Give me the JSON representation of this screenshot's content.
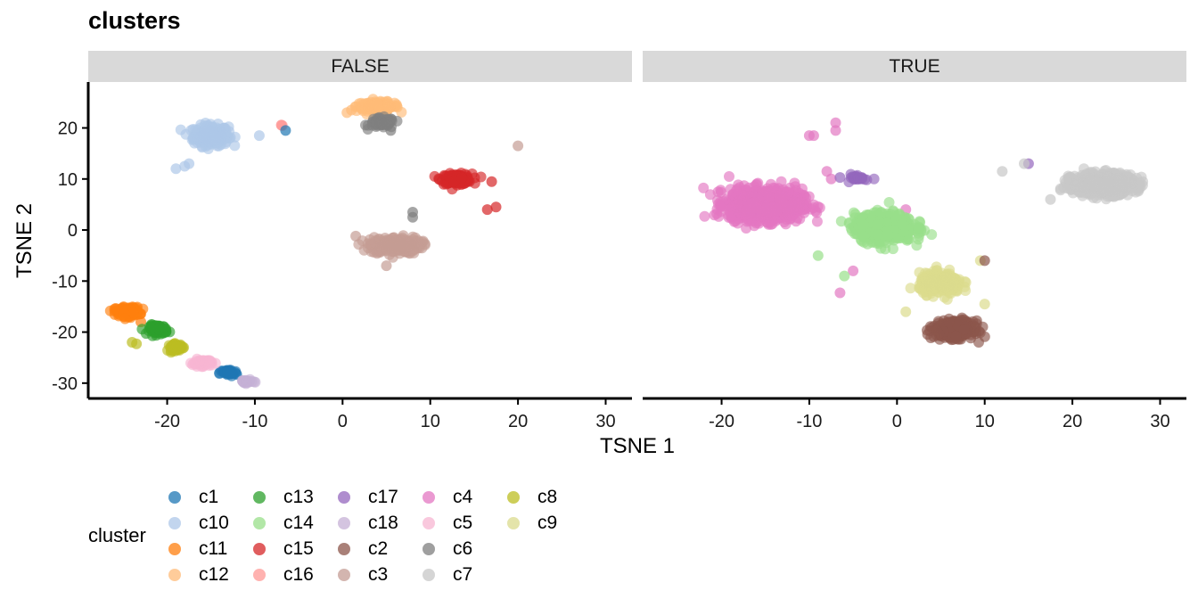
{
  "chart_data": {
    "type": "scatter",
    "title": "clusters",
    "xlabel": "TSNE 1",
    "ylabel": "TSNE 2",
    "xlim": [
      -29,
      33
    ],
    "ylim": [
      -33,
      29
    ],
    "x_ticks": [
      -20,
      -10,
      0,
      10,
      20,
      30
    ],
    "y_ticks": [
      -30,
      -20,
      -10,
      0,
      10,
      20
    ],
    "grid": false,
    "legend_placement": "bottom",
    "legend_title": "cluster",
    "panels": [
      {
        "label": "FALSE",
        "series": [
          {
            "name": "c10",
            "color": "#AEC7E8",
            "center": [
              -15,
              18.5
            ],
            "spread": [
              1.8,
              1.8
            ],
            "n": 260,
            "extras": [
              [
                -18,
                12.5
              ],
              [
                -19,
                12
              ],
              [
                -9.5,
                18.5
              ],
              [
                -17.5,
                13
              ]
            ]
          },
          {
            "name": "c12",
            "color": "#FFBB78",
            "center": [
              4,
              24.2
            ],
            "spread": [
              2.2,
              0.8
            ],
            "n": 130,
            "extras": [
              [
                1,
                23.5
              ],
              [
                0.5,
                23
              ]
            ]
          },
          {
            "name": "c6",
            "color": "#7F7F7F",
            "center": [
              4.5,
              21
            ],
            "spread": [
              1.3,
              0.9
            ],
            "n": 70,
            "extras": [
              [
                5.5,
                19.5
              ],
              [
                8,
                3.5
              ],
              [
                8,
                2.5
              ]
            ]
          },
          {
            "name": "c15",
            "color": "#D62728",
            "center": [
              13,
              10
            ],
            "spread": [
              1.6,
              0.9
            ],
            "n": 120,
            "extras": [
              [
                17.5,
                4.5
              ],
              [
                17,
                9.5
              ],
              [
                16.5,
                4
              ]
            ]
          },
          {
            "name": "c16",
            "color": "#FF9896",
            "center": [
              -7,
              20.5
            ],
            "spread": [
              0.2,
              0.3
            ],
            "n": 3,
            "extras": []
          },
          {
            "name": "c1",
            "color": "#1F77B4",
            "center": [
              -13,
              -28
            ],
            "spread": [
              0.9,
              0.6
            ],
            "n": 40,
            "extras": [
              [
                -6.5,
                19.5
              ]
            ]
          },
          {
            "name": "c3",
            "color": "#C49C94",
            "center": [
              6,
              -3
            ],
            "spread": [
              2.6,
              1.5
            ],
            "n": 220,
            "extras": [
              [
                20,
                16.5
              ],
              [
                1.5,
                -1.2
              ],
              [
                5,
                -7
              ]
            ]
          },
          {
            "name": "c11",
            "color": "#FF7F0E",
            "center": [
              -24.5,
              -16
            ],
            "spread": [
              1.2,
              0.8
            ],
            "n": 160,
            "extras": [
              [
                -26,
                -15.5
              ],
              [
                -23,
                -18
              ]
            ]
          },
          {
            "name": "c13",
            "color": "#2CA02C",
            "center": [
              -21,
              -19.5
            ],
            "spread": [
              0.9,
              0.8
            ],
            "n": 90,
            "extras": []
          },
          {
            "name": "c8",
            "color": "#BCBD22",
            "center": [
              -19,
              -23
            ],
            "spread": [
              0.8,
              0.6
            ],
            "n": 50,
            "extras": [
              [
                -23.5,
                -22.3
              ],
              [
                -24,
                -22
              ]
            ]
          },
          {
            "name": "c5",
            "color": "#F7B6D2",
            "center": [
              -16,
              -26
            ],
            "spread": [
              1.0,
              0.6
            ],
            "n": 60,
            "extras": []
          },
          {
            "name": "c18",
            "color": "#C5B0D5",
            "center": [
              -11,
              -29.7
            ],
            "spread": [
              0.7,
              0.3
            ],
            "n": 25,
            "extras": []
          }
        ]
      },
      {
        "label": "TRUE",
        "series": [
          {
            "name": "c4",
            "color": "#E377C2",
            "center": [
              -15,
              5
            ],
            "spread": [
              3.8,
              2.8
            ],
            "n": 900,
            "extras": [
              [
                -7,
                21
              ],
              [
                -7,
                19.5
              ],
              [
                -10,
                18.5
              ],
              [
                -9.5,
                18.5
              ],
              [
                -8,
                11.5
              ],
              [
                -7.5,
                10
              ],
              [
                -6.5,
                -12.3
              ],
              [
                1,
                4
              ],
              [
                -5,
                -8
              ]
            ]
          },
          {
            "name": "c14",
            "color": "#98DF8A",
            "center": [
              -1.5,
              0.5
            ],
            "spread": [
              3.0,
              2.5
            ],
            "n": 550,
            "extras": [
              [
                -9,
                -5
              ],
              [
                -6,
                -9
              ],
              [
                4,
                -10
              ]
            ]
          },
          {
            "name": "c9",
            "color": "#DBDB8D",
            "center": [
              5,
              -10.5
            ],
            "spread": [
              2.2,
              1.8
            ],
            "n": 280,
            "extras": [
              [
                9.5,
                -6
              ],
              [
                10,
                -14.5
              ],
              [
                1,
                -16
              ]
            ]
          },
          {
            "name": "c2",
            "color": "#8C564B",
            "center": [
              6.5,
              -19.5
            ],
            "spread": [
              2.0,
              1.5
            ],
            "n": 330,
            "extras": [
              [
                10,
                -6
              ]
            ]
          },
          {
            "name": "c17",
            "color": "#9467BD",
            "center": [
              -4.5,
              10.3
            ],
            "spread": [
              0.8,
              0.6
            ],
            "n": 28,
            "extras": [
              [
                -6.5,
                10.3
              ],
              [
                15,
                13
              ]
            ]
          },
          {
            "name": "c7",
            "color": "#C7C7C7",
            "center": [
              23.5,
              9
            ],
            "spread": [
              3.2,
              1.8
            ],
            "n": 700,
            "extras": [
              [
                12,
                11.5
              ],
              [
                14.5,
                13
              ],
              [
                17.5,
                6
              ]
            ]
          }
        ]
      }
    ]
  },
  "legend_items": [
    {
      "name": "c1",
      "color": "#1F77B4"
    },
    {
      "name": "c10",
      "color": "#AEC7E8"
    },
    {
      "name": "c11",
      "color": "#FF7F0E"
    },
    {
      "name": "c12",
      "color": "#FFBB78"
    },
    {
      "name": "c13",
      "color": "#2CA02C"
    },
    {
      "name": "c14",
      "color": "#98DF8A"
    },
    {
      "name": "c15",
      "color": "#D62728"
    },
    {
      "name": "c16",
      "color": "#FF9896"
    },
    {
      "name": "c17",
      "color": "#9467BD"
    },
    {
      "name": "c18",
      "color": "#C5B0D5"
    },
    {
      "name": "c2",
      "color": "#8C564B"
    },
    {
      "name": "c3",
      "color": "#C49C94"
    },
    {
      "name": "c4",
      "color": "#E377C2"
    },
    {
      "name": "c5",
      "color": "#F7B6D2"
    },
    {
      "name": "c6",
      "color": "#7F7F7F"
    },
    {
      "name": "c7",
      "color": "#C7C7C7"
    },
    {
      "name": "c8",
      "color": "#BCBD22"
    },
    {
      "name": "c9",
      "color": "#DBDB8D"
    }
  ]
}
